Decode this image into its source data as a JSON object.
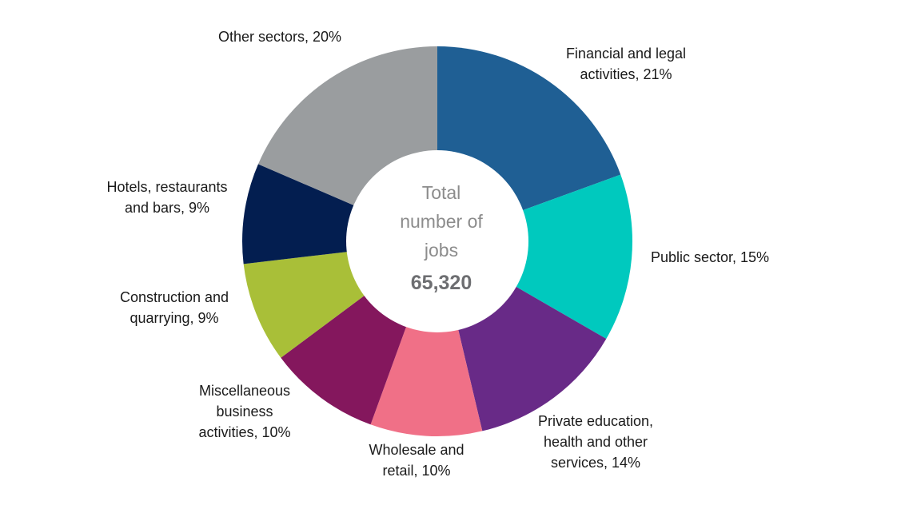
{
  "chart_data": {
    "type": "pie",
    "variant": "donut",
    "title": "",
    "center_label_lines": [
      "Total",
      "number of",
      "jobs"
    ],
    "center_total": "65,320",
    "slices": [
      {
        "name": "Financial and legal activities",
        "value": 21,
        "color": "#1f5f94",
        "label_lines": [
          "Financial and legal",
          "activities, 21%"
        ]
      },
      {
        "name": "Public sector",
        "value": 15,
        "color": "#00c9be",
        "label_lines": [
          "Public sector, 15%"
        ]
      },
      {
        "name": "Private education, health and other services",
        "value": 14,
        "color": "#682a87",
        "label_lines": [
          "Private education,",
          "health and other",
          "services, 14%"
        ]
      },
      {
        "name": "Wholesale and retail",
        "value": 10,
        "color": "#f07087",
        "label_lines": [
          "Wholesale and",
          "retail, 10%"
        ]
      },
      {
        "name": "Miscellaneous business activities",
        "value": 10,
        "color": "#84175d",
        "label_lines": [
          "Miscellaneous",
          "business",
          "activities, 10%"
        ]
      },
      {
        "name": "Construction and quarrying",
        "value": 9,
        "color": "#a9bf38",
        "label_lines": [
          "Construction and",
          "quarrying, 9%"
        ]
      },
      {
        "name": "Hotels, restaurants and bars",
        "value": 9,
        "color": "#031e50",
        "label_lines": [
          "Hotels, restaurants",
          "and bars, 9%"
        ]
      },
      {
        "name": "Other sectors",
        "value": 20,
        "color": "#9a9d9f",
        "label_lines": [
          "Other sectors, 20%"
        ]
      }
    ]
  }
}
